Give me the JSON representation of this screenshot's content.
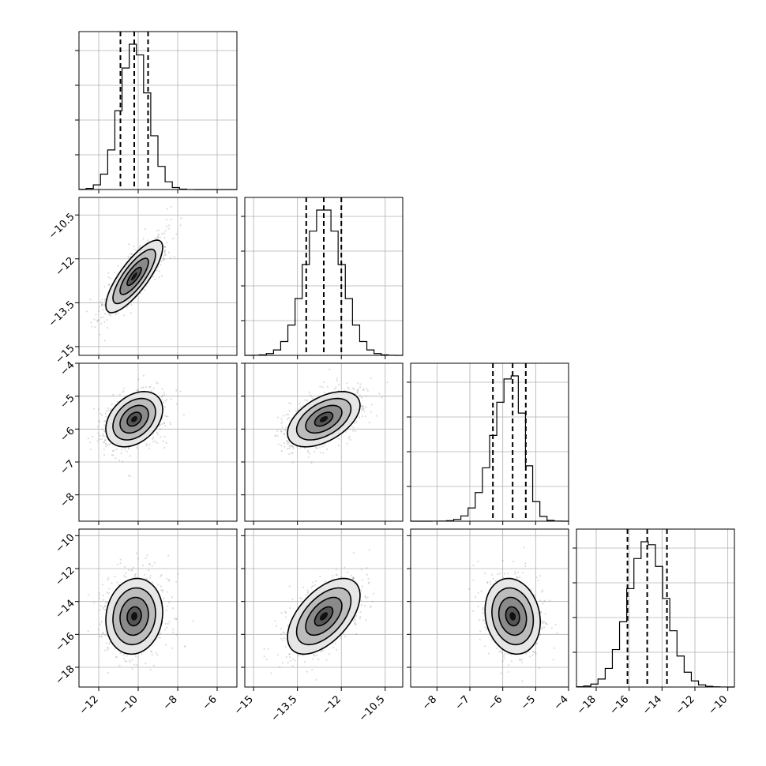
{
  "chart_data": {
    "type": "corner",
    "params": [
      {
        "id": "p1",
        "label": "",
        "mean": -10.2,
        "sd": 0.72,
        "range": [
          -13.0,
          -5.0
        ],
        "ticks": [
          -12,
          -10,
          -8,
          -6
        ],
        "quantiles": [
          -10.9,
          -10.2,
          -9.5
        ]
      },
      {
        "id": "p2",
        "label": "",
        "mean": -12.6,
        "sd": 0.62,
        "range": [
          -15.3,
          -9.9
        ],
        "ticks": [
          -15.0,
          -13.5,
          -12.0,
          -10.5
        ],
        "quantiles": [
          -13.2,
          -12.6,
          -12.0
        ]
      },
      {
        "id": "p3",
        "label": "",
        "mean": -5.7,
        "sd": 0.42,
        "range": [
          -8.8,
          -4.0
        ],
        "ticks": [
          -8,
          -7,
          -6,
          -5,
          -4
        ],
        "quantiles": [
          -6.3,
          -5.7,
          -5.3
        ]
      },
      {
        "id": "p4",
        "label": "",
        "mean": -14.9,
        "sd": 1.15,
        "range": [
          -19.2,
          -9.6
        ],
        "ticks": [
          -18,
          -16,
          -14,
          -12,
          -10
        ],
        "quantiles": [
          -16.1,
          -14.9,
          -13.7
        ]
      }
    ],
    "correlations": {
      "p1_p2": 0.8,
      "p1_p3": 0.35,
      "p1_p4": 0.1,
      "p2_p3": 0.5,
      "p2_p4": 0.55,
      "p3_p4": -0.15
    },
    "contour_levels_sigma": [
      0.5,
      1.0,
      1.5,
      2.0
    ],
    "grid": true,
    "quantile_style": "dashed"
  }
}
